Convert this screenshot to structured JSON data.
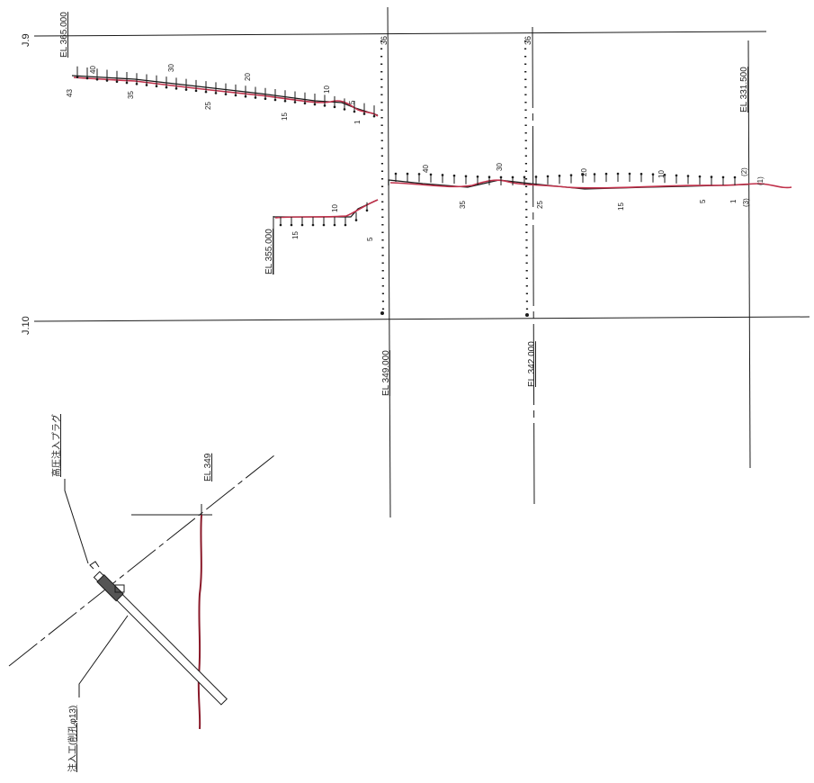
{
  "grid_labels": {
    "j9": "J.9",
    "j10": "J.10"
  },
  "elevations": {
    "el_top_left": "EL 365.000",
    "el_mid_left": "EL 355.000",
    "el_349": "EL 349.000",
    "el_342": "EL 342.000",
    "el_331": "EL 331.500",
    "el_detail": "EL 349"
  },
  "section_marks": {
    "col_a": "36",
    "col_b": "36"
  },
  "profile_upper_numbers": [
    "43",
    "40",
    "35",
    "30",
    "25",
    "20",
    "15",
    "10",
    "5",
    "1"
  ],
  "profile_lower_left_numbers": [
    "15",
    "10",
    "5"
  ],
  "profile_right_numbers": [
    "40",
    "35",
    "30",
    "25",
    "20",
    "15",
    "10",
    "5",
    "1"
  ],
  "right_end_marks": [
    "(2)",
    "(1)",
    "(3)"
  ],
  "detail_labels": {
    "plug": "高圧注入プラグ",
    "injection": "注入工(削孔φ13)"
  },
  "colors": {
    "ink": "#1a1a1a",
    "crack": "#c0304a"
  }
}
